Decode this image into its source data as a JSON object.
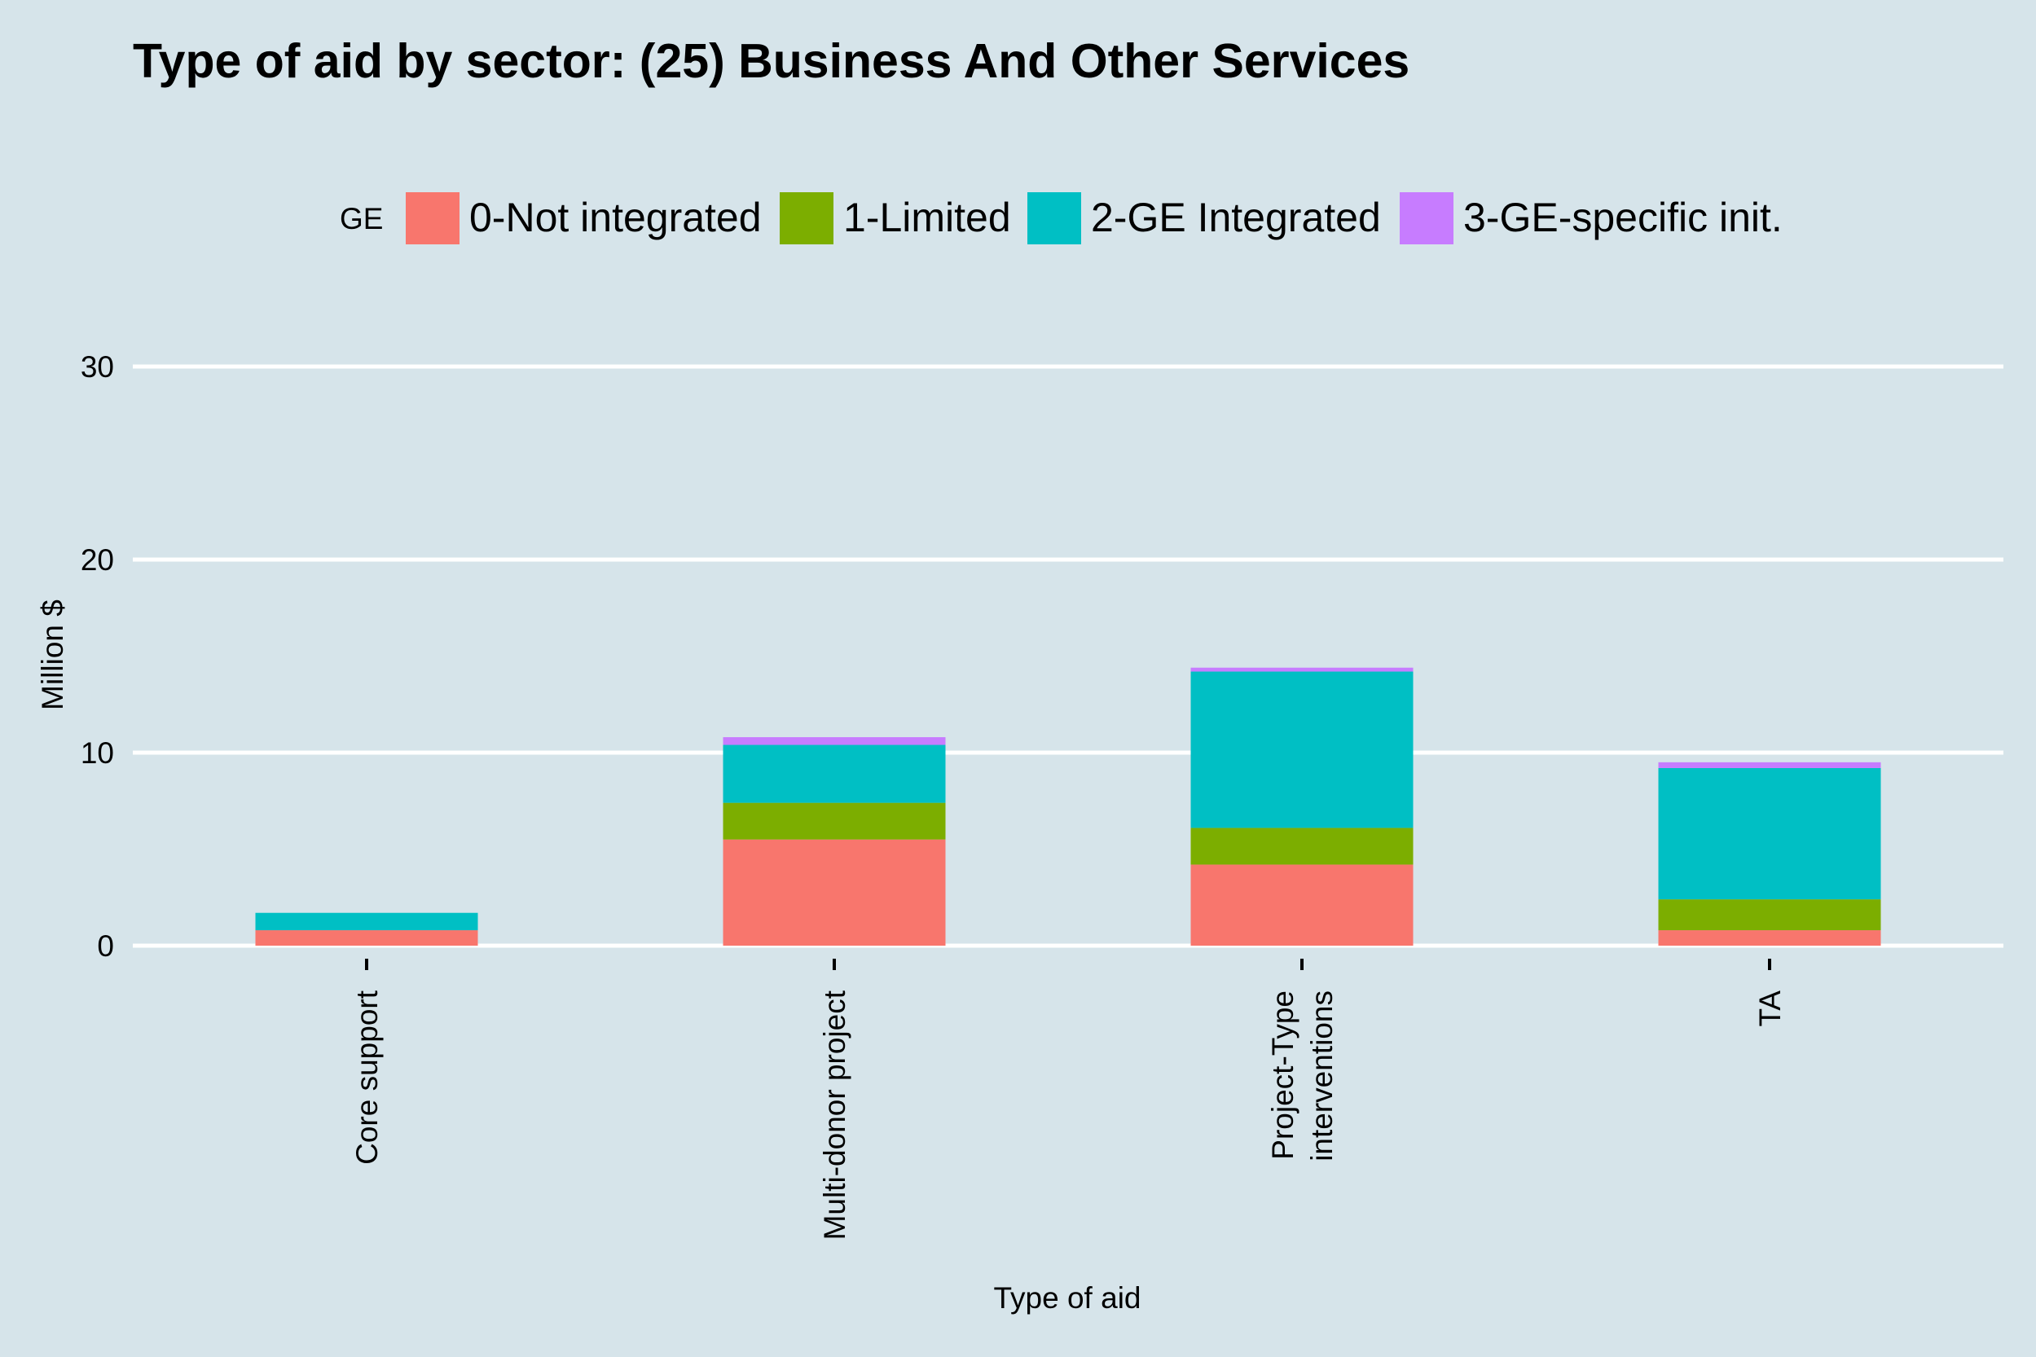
{
  "chart_data": {
    "type": "bar",
    "stacked": true,
    "title": "Type of aid by sector:  (25) Business And Other Services",
    "xlabel": "Type of aid",
    "ylabel": "Million $",
    "ylim": [
      0,
      32
    ],
    "yticks": [
      0,
      10,
      20,
      30
    ],
    "grid": "horizontal major gridlines",
    "legend_position": "top",
    "legend_title": "GE",
    "categories": [
      [
        "Core support"
      ],
      [
        "Multi-donor project"
      ],
      [
        "Project-Type",
        "interventions"
      ],
      [
        "TA"
      ]
    ],
    "series": [
      {
        "name": "0-Not integrated",
        "color": "#f8766d",
        "values": [
          0.8,
          5.5,
          4.2,
          0.8
        ]
      },
      {
        "name": "1-Limited",
        "color": "#7cae00",
        "values": [
          0.0,
          1.9,
          1.9,
          1.6
        ]
      },
      {
        "name": "2-GE Integrated",
        "color": "#00bfc4",
        "values": [
          0.9,
          3.0,
          8.1,
          6.8
        ]
      },
      {
        "name": "3-GE-specific init.",
        "color": "#c77cff",
        "values": [
          0.0,
          0.4,
          0.2,
          0.3
        ]
      }
    ]
  },
  "colors": {
    "background": "#d6e4ea",
    "gridline": "#ffffff",
    "text": "#000000"
  }
}
